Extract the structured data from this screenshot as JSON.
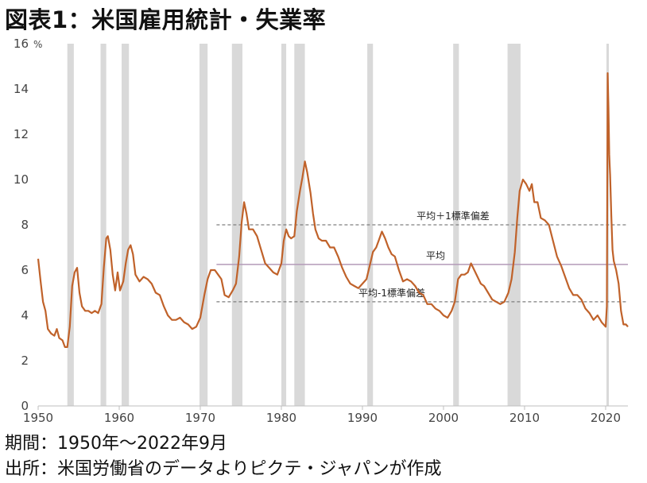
{
  "title": "図表1：米国雇用統計・失業率",
  "footer": {
    "period": "期間：1950年～2022年9月",
    "source": "出所：米国労働省のデータよりピクテ・ジャパンが作成"
  },
  "colors": {
    "series": "#c0622a",
    "recession": "#d9d9d9",
    "mean_line": "#b39ab8",
    "band_line": "#7f7f7f"
  },
  "chart_data": {
    "type": "line",
    "y_unit": "%",
    "ylim": [
      0,
      16
    ],
    "yticks": [
      0,
      2,
      4,
      6,
      8,
      10,
      12,
      14,
      16
    ],
    "xlim": [
      1950,
      2022.75
    ],
    "xticks": [
      1950,
      1960,
      1970,
      1980,
      1990,
      2000,
      2010,
      2020
    ],
    "grid": false,
    "recessions": [
      [
        1953.6,
        1954.4
      ],
      [
        1957.7,
        1958.4
      ],
      [
        1960.3,
        1961.2
      ],
      [
        1969.9,
        1970.9
      ],
      [
        1973.9,
        1975.2
      ],
      [
        1980.0,
        1980.6
      ],
      [
        1981.6,
        1982.9
      ],
      [
        1990.6,
        1991.3
      ],
      [
        2001.2,
        2001.9
      ],
      [
        2007.9,
        2009.5
      ],
      [
        2020.1,
        2020.4
      ]
    ],
    "reference_lines": [
      {
        "label": "平均＋1標準偏差",
        "y": 8.0,
        "style": "dashed"
      },
      {
        "label": "平均",
        "y": 6.25,
        "style": "solid"
      },
      {
        "label": "平均-1標準偏差",
        "y": 4.6,
        "style": "dashed"
      }
    ],
    "reference_x_start": 1972.0,
    "series": [
      {
        "points": [
          [
            1950.0,
            6.5
          ],
          [
            1950.3,
            5.5
          ],
          [
            1950.6,
            4.6
          ],
          [
            1950.9,
            4.2
          ],
          [
            1951.2,
            3.4
          ],
          [
            1951.6,
            3.2
          ],
          [
            1952.0,
            3.1
          ],
          [
            1952.3,
            3.4
          ],
          [
            1952.6,
            3.0
          ],
          [
            1953.0,
            2.9
          ],
          [
            1953.3,
            2.6
          ],
          [
            1953.6,
            2.6
          ],
          [
            1953.9,
            3.5
          ],
          [
            1954.2,
            5.3
          ],
          [
            1954.5,
            5.9
          ],
          [
            1954.8,
            6.1
          ],
          [
            1955.1,
            5.0
          ],
          [
            1955.4,
            4.4
          ],
          [
            1955.8,
            4.2
          ],
          [
            1956.2,
            4.2
          ],
          [
            1956.6,
            4.1
          ],
          [
            1957.0,
            4.2
          ],
          [
            1957.4,
            4.1
          ],
          [
            1957.8,
            4.5
          ],
          [
            1958.1,
            6.1
          ],
          [
            1958.4,
            7.4
          ],
          [
            1958.6,
            7.5
          ],
          [
            1958.9,
            6.9
          ],
          [
            1959.2,
            5.8
          ],
          [
            1959.5,
            5.1
          ],
          [
            1959.8,
            5.9
          ],
          [
            1960.1,
            5.1
          ],
          [
            1960.5,
            5.5
          ],
          [
            1960.8,
            6.3
          ],
          [
            1961.1,
            6.9
          ],
          [
            1961.4,
            7.1
          ],
          [
            1961.7,
            6.7
          ],
          [
            1962.0,
            5.8
          ],
          [
            1962.5,
            5.5
          ],
          [
            1963.0,
            5.7
          ],
          [
            1963.5,
            5.6
          ],
          [
            1964.0,
            5.4
          ],
          [
            1964.5,
            5.0
          ],
          [
            1965.0,
            4.9
          ],
          [
            1965.5,
            4.4
          ],
          [
            1966.0,
            4.0
          ],
          [
            1966.5,
            3.8
          ],
          [
            1967.0,
            3.8
          ],
          [
            1967.5,
            3.9
          ],
          [
            1968.0,
            3.7
          ],
          [
            1968.5,
            3.6
          ],
          [
            1969.0,
            3.4
          ],
          [
            1969.5,
            3.5
          ],
          [
            1970.0,
            3.9
          ],
          [
            1970.5,
            4.9
          ],
          [
            1970.9,
            5.6
          ],
          [
            1971.3,
            6.0
          ],
          [
            1971.8,
            6.0
          ],
          [
            1972.2,
            5.8
          ],
          [
            1972.6,
            5.6
          ],
          [
            1973.0,
            4.9
          ],
          [
            1973.5,
            4.8
          ],
          [
            1974.0,
            5.1
          ],
          [
            1974.4,
            5.4
          ],
          [
            1974.8,
            6.6
          ],
          [
            1975.1,
            8.1
          ],
          [
            1975.4,
            9.0
          ],
          [
            1975.7,
            8.5
          ],
          [
            1976.0,
            7.8
          ],
          [
            1976.5,
            7.8
          ],
          [
            1977.0,
            7.5
          ],
          [
            1977.5,
            6.9
          ],
          [
            1978.0,
            6.3
          ],
          [
            1978.5,
            6.1
          ],
          [
            1979.0,
            5.9
          ],
          [
            1979.5,
            5.8
          ],
          [
            1980.0,
            6.3
          ],
          [
            1980.3,
            7.3
          ],
          [
            1980.6,
            7.8
          ],
          [
            1980.9,
            7.5
          ],
          [
            1981.2,
            7.4
          ],
          [
            1981.6,
            7.5
          ],
          [
            1981.9,
            8.6
          ],
          [
            1982.3,
            9.5
          ],
          [
            1982.6,
            10.1
          ],
          [
            1982.9,
            10.8
          ],
          [
            1983.2,
            10.3
          ],
          [
            1983.6,
            9.4
          ],
          [
            1983.9,
            8.5
          ],
          [
            1984.2,
            7.8
          ],
          [
            1984.6,
            7.4
          ],
          [
            1985.0,
            7.3
          ],
          [
            1985.5,
            7.3
          ],
          [
            1986.0,
            7.0
          ],
          [
            1986.5,
            7.0
          ],
          [
            1987.0,
            6.6
          ],
          [
            1987.5,
            6.1
          ],
          [
            1988.0,
            5.7
          ],
          [
            1988.5,
            5.4
          ],
          [
            1989.0,
            5.3
          ],
          [
            1989.5,
            5.2
          ],
          [
            1990.0,
            5.4
          ],
          [
            1990.5,
            5.6
          ],
          [
            1990.9,
            6.2
          ],
          [
            1991.3,
            6.8
          ],
          [
            1991.7,
            7.0
          ],
          [
            1992.0,
            7.3
          ],
          [
            1992.4,
            7.7
          ],
          [
            1992.8,
            7.4
          ],
          [
            1993.2,
            7.0
          ],
          [
            1993.6,
            6.7
          ],
          [
            1994.0,
            6.6
          ],
          [
            1994.5,
            6.0
          ],
          [
            1995.0,
            5.5
          ],
          [
            1995.5,
            5.6
          ],
          [
            1996.0,
            5.5
          ],
          [
            1996.5,
            5.3
          ],
          [
            1997.0,
            5.0
          ],
          [
            1997.5,
            4.9
          ],
          [
            1998.0,
            4.5
          ],
          [
            1998.5,
            4.5
          ],
          [
            1999.0,
            4.3
          ],
          [
            1999.5,
            4.2
          ],
          [
            2000.0,
            4.0
          ],
          [
            2000.5,
            3.9
          ],
          [
            2001.0,
            4.2
          ],
          [
            2001.4,
            4.6
          ],
          [
            2001.8,
            5.6
          ],
          [
            2002.2,
            5.8
          ],
          [
            2002.6,
            5.8
          ],
          [
            2003.0,
            5.9
          ],
          [
            2003.4,
            6.3
          ],
          [
            2003.8,
            6.0
          ],
          [
            2004.2,
            5.7
          ],
          [
            2004.6,
            5.4
          ],
          [
            2005.0,
            5.3
          ],
          [
            2005.5,
            5.0
          ],
          [
            2006.0,
            4.7
          ],
          [
            2006.5,
            4.6
          ],
          [
            2007.0,
            4.5
          ],
          [
            2007.5,
            4.6
          ],
          [
            2008.0,
            5.0
          ],
          [
            2008.4,
            5.6
          ],
          [
            2008.8,
            6.8
          ],
          [
            2009.1,
            8.3
          ],
          [
            2009.4,
            9.5
          ],
          [
            2009.8,
            10.0
          ],
          [
            2010.2,
            9.8
          ],
          [
            2010.6,
            9.5
          ],
          [
            2010.9,
            9.8
          ],
          [
            2011.2,
            9.0
          ],
          [
            2011.6,
            9.0
          ],
          [
            2012.0,
            8.3
          ],
          [
            2012.5,
            8.2
          ],
          [
            2013.0,
            8.0
          ],
          [
            2013.5,
            7.3
          ],
          [
            2014.0,
            6.6
          ],
          [
            2014.5,
            6.2
          ],
          [
            2015.0,
            5.7
          ],
          [
            2015.5,
            5.2
          ],
          [
            2016.0,
            4.9
          ],
          [
            2016.5,
            4.9
          ],
          [
            2017.0,
            4.7
          ],
          [
            2017.5,
            4.3
          ],
          [
            2018.0,
            4.1
          ],
          [
            2018.5,
            3.8
          ],
          [
            2019.0,
            4.0
          ],
          [
            2019.5,
            3.7
          ],
          [
            2020.0,
            3.5
          ],
          [
            2020.15,
            4.4
          ],
          [
            2020.25,
            14.7
          ],
          [
            2020.35,
            13.2
          ],
          [
            2020.45,
            11.1
          ],
          [
            2020.55,
            10.2
          ],
          [
            2020.7,
            8.4
          ],
          [
            2020.85,
            6.9
          ],
          [
            2021.0,
            6.4
          ],
          [
            2021.3,
            6.0
          ],
          [
            2021.6,
            5.4
          ],
          [
            2021.9,
            4.2
          ],
          [
            2022.2,
            3.6
          ],
          [
            2022.5,
            3.6
          ],
          [
            2022.75,
            3.5
          ]
        ]
      }
    ]
  }
}
